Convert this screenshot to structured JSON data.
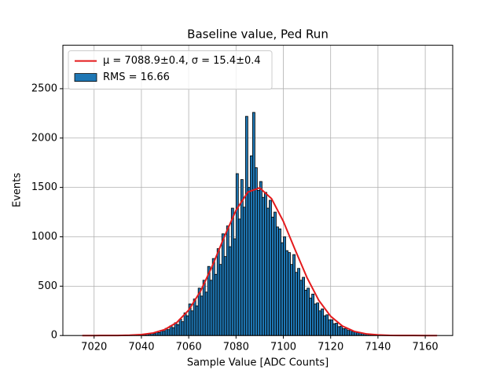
{
  "chart_data": {
    "type": "histogram",
    "title": "Baseline value, Ped Run",
    "x_label": "Sample Value [ADC Counts]",
    "y_label": "Events",
    "xlim": [
      7006.8,
      7171.6
    ],
    "ylim": [
      0,
      2940
    ],
    "xticks": [
      7020,
      7040,
      7060,
      7080,
      7100,
      7120,
      7140,
      7160
    ],
    "yticks": [
      0,
      500,
      1000,
      1500,
      2000,
      2500
    ],
    "grid": true,
    "legend": "upper left",
    "histogram": {
      "name": "RMS = 16.66",
      "color": "#1f77b4",
      "bins": [
        7030,
        7031,
        7032,
        7033,
        7034,
        7035,
        7036,
        7037,
        7038,
        7039,
        7040,
        7041,
        7042,
        7043,
        7044,
        7045,
        7046,
        7047,
        7048,
        7049,
        7050,
        7051,
        7052,
        7053,
        7054,
        7055,
        7056,
        7057,
        7058,
        7059,
        7060,
        7061,
        7062,
        7063,
        7064,
        7065,
        7066,
        7067,
        7068,
        7069,
        7070,
        7071,
        7072,
        7073,
        7074,
        7075,
        7076,
        7077,
        7078,
        7079,
        7080,
        7081,
        7082,
        7083,
        7084,
        7085,
        7086,
        7087,
        7088,
        7089,
        7090,
        7091,
        7092,
        7093,
        7094,
        7095,
        7096,
        7097,
        7098,
        7099,
        7100,
        7101,
        7102,
        7103,
        7104,
        7105,
        7106,
        7107,
        7108,
        7109,
        7110,
        7111,
        7112,
        7113,
        7114,
        7115,
        7116,
        7117,
        7118,
        7119,
        7120,
        7121,
        7122,
        7123,
        7124,
        7125,
        7126,
        7127,
        7128,
        7129,
        7130,
        7131,
        7132,
        7133,
        7134,
        7135,
        7136,
        7137,
        7138,
        7139,
        7140,
        7141,
        7142,
        7143,
        7144,
        7145,
        7146,
        7147,
        7148
      ],
      "counts": [
        2,
        1,
        3,
        2,
        5,
        4,
        7,
        5,
        9,
        7,
        12,
        9,
        18,
        14,
        25,
        19,
        36,
        30,
        52,
        44,
        72,
        60,
        98,
        80,
        130,
        110,
        165,
        140,
        230,
        200,
        320,
        250,
        370,
        300,
        480,
        400,
        560,
        440,
        700,
        560,
        780,
        620,
        880,
        720,
        1030,
        800,
        1110,
        900,
        1290,
        980,
        1640,
        1180,
        1580,
        1300,
        2220,
        1500,
        1820,
        2260,
        1700,
        1470,
        1560,
        1400,
        1450,
        1290,
        1370,
        1200,
        1250,
        1100,
        1080,
        940,
        1000,
        860,
        840,
        720,
        820,
        640,
        680,
        560,
        590,
        460,
        480,
        380,
        420,
        320,
        330,
        250,
        270,
        200,
        210,
        160,
        160,
        120,
        125,
        90,
        95,
        70,
        72,
        52,
        55,
        40,
        40,
        30,
        30,
        22,
        22,
        16,
        15,
        11,
        11,
        8,
        8,
        6,
        5,
        4,
        4,
        3,
        2,
        2
      ]
    },
    "fit": {
      "name": "μ = 7088.9±0.4, σ = 15.4±0.4",
      "color": "#e41a1c",
      "x": [
        7015,
        7020,
        7025,
        7030,
        7035,
        7040,
        7045,
        7050,
        7055,
        7060,
        7065,
        7070,
        7075,
        7080,
        7085,
        7090,
        7095,
        7100,
        7105,
        7110,
        7115,
        7120,
        7125,
        7130,
        7135,
        7140,
        7145,
        7150,
        7155,
        7160,
        7165
      ],
      "values": [
        0,
        0.07,
        0.3,
        1,
        3.3,
        9.7,
        26,
        62,
        133,
        258,
        450,
        706,
        998,
        1269,
        1453,
        1496,
        1387,
        1157,
        868,
        587,
        356,
        195,
        96,
        42,
        17,
        6.1,
        2,
        0.6,
        0.15,
        0.03,
        0
      ]
    }
  }
}
